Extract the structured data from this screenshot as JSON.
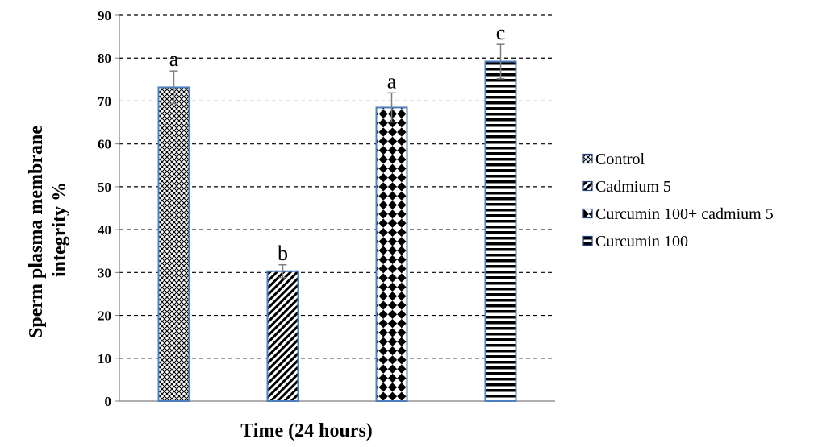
{
  "chart_data": {
    "type": "bar",
    "xlabel": "Time (24 hours)",
    "ylabel_lines": [
      "Sperm plasma membrane",
      "integrity %"
    ],
    "ylim": [
      0,
      90
    ],
    "yticks": [
      0,
      10,
      20,
      30,
      40,
      50,
      60,
      70,
      80,
      90
    ],
    "grid": true,
    "legend_position": "right",
    "series": [
      {
        "name": "Control",
        "value": 73.2,
        "error": 3.8,
        "letter": "a",
        "pattern": "crosshatch"
      },
      {
        "name": "Cadmium 5",
        "value": 30.3,
        "error": 1.5,
        "letter": "b",
        "pattern": "diagonal-stripes"
      },
      {
        "name": "Curcumin 100+ cadmium 5",
        "value": 68.5,
        "error": 3.4,
        "letter": "a",
        "pattern": "diamond-checker"
      },
      {
        "name": "Curcumin 100",
        "value": 79.2,
        "error": 4.0,
        "letter": "c",
        "pattern": "horizontal-stripes"
      }
    ],
    "colors": {
      "bar_border": "#4f7fbf",
      "error_bar": "#7f7f7f",
      "grid": "#000000"
    }
  }
}
